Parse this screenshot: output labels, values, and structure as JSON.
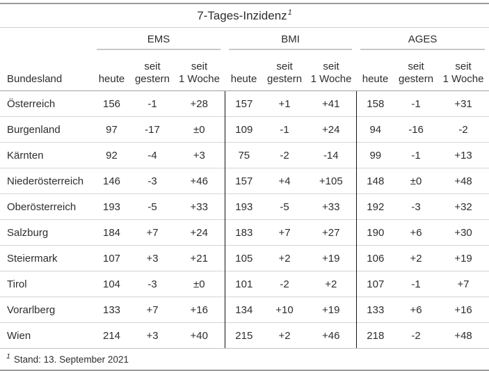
{
  "title": {
    "text": "7-Tages-Inzidenz",
    "footnote_marker": "1"
  },
  "table": {
    "row_header": "Bundesland",
    "groups": [
      {
        "label": "EMS"
      },
      {
        "label": "BMI"
      },
      {
        "label": "AGES"
      }
    ],
    "sub_columns": [
      {
        "line1": "",
        "line2": "heute"
      },
      {
        "line1": "seit",
        "line2": "gestern"
      },
      {
        "line1": "seit",
        "line2": "1 Woche"
      }
    ],
    "rows": [
      {
        "name": "Österreich",
        "values": [
          "156",
          "-1",
          "+28",
          "157",
          "+1",
          "+41",
          "158",
          "-1",
          "+31"
        ]
      },
      {
        "name": "Burgenland",
        "values": [
          "97",
          "-17",
          "±0",
          "109",
          "-1",
          "+24",
          "94",
          "-16",
          "-2"
        ]
      },
      {
        "name": "Kärnten",
        "values": [
          "92",
          "-4",
          "+3",
          "75",
          "-2",
          "-14",
          "99",
          "-1",
          "+13"
        ]
      },
      {
        "name": "Niederösterreich",
        "values": [
          "146",
          "-3",
          "+46",
          "157",
          "+4",
          "+105",
          "148",
          "±0",
          "+48"
        ]
      },
      {
        "name": "Oberösterreich",
        "values": [
          "193",
          "-5",
          "+33",
          "193",
          "-5",
          "+33",
          "192",
          "-3",
          "+32"
        ]
      },
      {
        "name": "Salzburg",
        "values": [
          "184",
          "+7",
          "+24",
          "183",
          "+7",
          "+27",
          "190",
          "+6",
          "+30"
        ]
      },
      {
        "name": "Steiermark",
        "values": [
          "107",
          "+3",
          "+21",
          "105",
          "+2",
          "+19",
          "106",
          "+2",
          "+19"
        ]
      },
      {
        "name": "Tirol",
        "values": [
          "104",
          "-3",
          "±0",
          "101",
          "-2",
          "+2",
          "107",
          "-1",
          "+7"
        ]
      },
      {
        "name": "Vorarlberg",
        "values": [
          "133",
          "+7",
          "+16",
          "134",
          "+10",
          "+19",
          "133",
          "+6",
          "+16"
        ]
      },
      {
        "name": "Wien",
        "values": [
          "214",
          "+3",
          "+40",
          "215",
          "+2",
          "+46",
          "218",
          "-2",
          "+48"
        ]
      }
    ]
  },
  "footnote": {
    "marker": "1",
    "text": "Stand: 13. September 2021"
  },
  "colors": {
    "frame_border": "#9a9a9a",
    "group_underline": "#c8c8c8",
    "header_line": "#a0a0a0",
    "row_separator": "#d5d5d5",
    "group_divider": "#101010",
    "text": "#2d2d2d",
    "background": "#ffffff"
  },
  "chart_data": {
    "type": "table",
    "title": "7-Tages-Inzidenz",
    "subtitle": "Stand: 13. September 2021",
    "column_groups": [
      "EMS",
      "BMI",
      "AGES"
    ],
    "columns": [
      "Bundesland",
      "EMS heute",
      "EMS seit gestern",
      "EMS seit 1 Woche",
      "BMI heute",
      "BMI seit gestern",
      "BMI seit 1 Woche",
      "AGES heute",
      "AGES seit gestern",
      "AGES seit 1 Woche"
    ],
    "rows": [
      [
        "Österreich",
        156,
        -1,
        28,
        157,
        1,
        41,
        158,
        -1,
        31
      ],
      [
        "Burgenland",
        97,
        -17,
        0,
        109,
        -1,
        24,
        94,
        -16,
        -2
      ],
      [
        "Kärnten",
        92,
        -4,
        3,
        75,
        -2,
        -14,
        99,
        -1,
        13
      ],
      [
        "Niederösterreich",
        146,
        -3,
        46,
        157,
        4,
        105,
        148,
        0,
        48
      ],
      [
        "Oberösterreich",
        193,
        -5,
        33,
        193,
        -5,
        33,
        192,
        -3,
        32
      ],
      [
        "Salzburg",
        184,
        7,
        24,
        183,
        7,
        27,
        190,
        6,
        30
      ],
      [
        "Steiermark",
        107,
        3,
        21,
        105,
        2,
        19,
        106,
        2,
        19
      ],
      [
        "Tirol",
        104,
        -3,
        0,
        101,
        -2,
        2,
        107,
        -1,
        7
      ],
      [
        "Vorarlberg",
        133,
        7,
        16,
        134,
        10,
        19,
        133,
        6,
        16
      ],
      [
        "Wien",
        214,
        3,
        40,
        215,
        2,
        46,
        218,
        -2,
        48
      ]
    ]
  }
}
